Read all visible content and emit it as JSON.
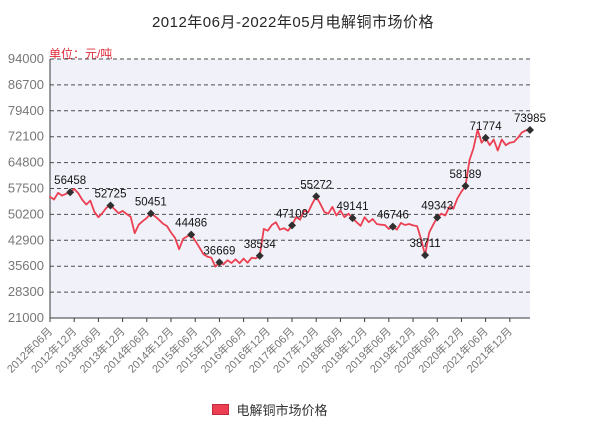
{
  "title": "2012年06月-2022年05月电解铜市场价格",
  "unit_label": "单位：元/吨",
  "legend": {
    "label": "电解铜市场价格"
  },
  "colors": {
    "series": "#ec4052",
    "series_border": "#c12a3e",
    "unit_text": "#e02a3c",
    "plot_bg": "#f0f1f9",
    "grid": "#4d4d4d",
    "axis": "#3a3a3a",
    "axis_text": "#777777",
    "point_label": "#141414",
    "marker": "#2f2f2f"
  },
  "chart_data": {
    "type": "line",
    "title": "2012年06月-2022年05月电解铜市场价格",
    "ylabel": "单位：元/吨",
    "series_name": "电解铜市场价格",
    "x_start": "2012-06",
    "x_end": "2022-05",
    "x_interval": "monthly",
    "grid": "horizontal-dashed",
    "legend_position": "bottom",
    "y_min": 21000,
    "y_max": 94000,
    "y_ticks": [
      94000,
      86700,
      79400,
      72100,
      64800,
      57500,
      50200,
      42900,
      35600,
      28300,
      21000
    ],
    "x_ticks": [
      {
        "index": 0,
        "label": "2012年06月"
      },
      {
        "index": 6,
        "label": "2012年12月"
      },
      {
        "index": 12,
        "label": "2013年06月"
      },
      {
        "index": 18,
        "label": "2013年12月"
      },
      {
        "index": 24,
        "label": "2014年06月"
      },
      {
        "index": 30,
        "label": "2014年12月"
      },
      {
        "index": 36,
        "label": "2015年06月"
      },
      {
        "index": 42,
        "label": "2015年12月"
      },
      {
        "index": 48,
        "label": "2016年06月"
      },
      {
        "index": 54,
        "label": "2016年12月"
      },
      {
        "index": 60,
        "label": "2017年06月"
      },
      {
        "index": 66,
        "label": "2017年12月"
      },
      {
        "index": 72,
        "label": "2018年06月"
      },
      {
        "index": 78,
        "label": "2018年12月"
      },
      {
        "index": 84,
        "label": "2019年06月"
      },
      {
        "index": 90,
        "label": "2019年12月"
      },
      {
        "index": 96,
        "label": "2020年06月"
      },
      {
        "index": 102,
        "label": "2020年12月"
      },
      {
        "index": 108,
        "label": "2021年06月"
      },
      {
        "index": 114,
        "label": "2021年12月"
      }
    ],
    "values": [
      55150,
      54400,
      56300,
      55500,
      56000,
      56458,
      57400,
      56200,
      54300,
      53000,
      54100,
      50900,
      49400,
      50600,
      52100,
      52725,
      51700,
      50500,
      51200,
      50300,
      49500,
      44900,
      47300,
      48300,
      49200,
      50451,
      49700,
      48700,
      47600,
      46900,
      45100,
      43600,
      40400,
      43300,
      44000,
      44486,
      42800,
      41000,
      39000,
      38300,
      38000,
      35500,
      36669,
      36100,
      37250,
      36500,
      37550,
      36450,
      37750,
      36600,
      38000,
      37800,
      38534,
      46100,
      45600,
      47200,
      48000,
      45900,
      46300,
      45600,
      47109,
      49400,
      48700,
      51300,
      50800,
      53200,
      55272,
      53200,
      50900,
      50400,
      52300,
      49900,
      51300,
      49400,
      50400,
      49141,
      48000,
      47000,
      49400,
      48000,
      48900,
      47500,
      47300,
      47200,
      46100,
      46746,
      45900,
      47800,
      47200,
      47500,
      47100,
      46900,
      43200,
      38711,
      45100,
      47300,
      49343,
      50400,
      49900,
      52300,
      51800,
      54700,
      56600,
      58189,
      65500,
      68900,
      74100,
      70400,
      71774,
      69700,
      71300,
      68200,
      71300,
      69700,
      70400,
      70600,
      71800,
      73300,
      73900,
      73985
    ],
    "labeled_points": [
      {
        "month_index": 5,
        "value": 56458
      },
      {
        "month_index": 15,
        "value": 52725
      },
      {
        "month_index": 25,
        "value": 50451
      },
      {
        "month_index": 35,
        "value": 44486
      },
      {
        "month_index": 42,
        "value": 36669
      },
      {
        "month_index": 52,
        "value": 38534
      },
      {
        "month_index": 60,
        "value": 47109
      },
      {
        "month_index": 66,
        "value": 55272
      },
      {
        "month_index": 75,
        "value": 49141
      },
      {
        "month_index": 85,
        "value": 46746
      },
      {
        "month_index": 93,
        "value": 38711
      },
      {
        "month_index": 96,
        "value": 49343
      },
      {
        "month_index": 103,
        "value": 58189
      },
      {
        "month_index": 108,
        "value": 71774
      },
      {
        "month_index": 119,
        "value": 73985
      }
    ]
  }
}
